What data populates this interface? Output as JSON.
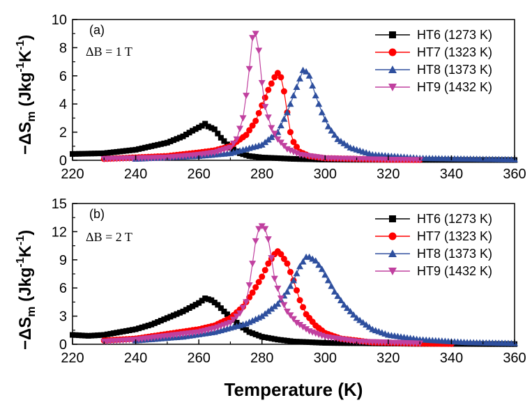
{
  "x_axis_label": "Temperature (K)",
  "chart_data": [
    {
      "type": "line",
      "panel": "(a)",
      "annotation": "ΔB = 1 T",
      "ylabel": {
        "main": "−ΔS",
        "sub": "m",
        "units": " (Jkg",
        "sup1": "-1",
        "mid": "K",
        "sup2": "-1",
        "end": ")"
      },
      "xlim": [
        220,
        360
      ],
      "ylim": [
        0,
        10
      ],
      "xticks": [
        "220",
        "240",
        "260",
        "280",
        "300",
        "320",
        "340",
        "360"
      ],
      "yticks": [
        "0",
        "2",
        "4",
        "6",
        "8",
        "10"
      ],
      "legend_position": "top-right",
      "series": [
        {
          "name": "HT6 (1273 K)",
          "color": "#000000",
          "marker": "square",
          "points": [
            [
              220,
              0.45
            ],
            [
              230,
              0.5
            ],
            [
              240,
              0.75
            ],
            [
              250,
              1.25
            ],
            [
              255,
              1.7
            ],
            [
              258,
              2.1
            ],
            [
              261,
              2.45
            ],
            [
              262,
              2.6
            ],
            [
              263,
              2.4
            ],
            [
              265,
              2.2
            ],
            [
              267,
              1.6
            ],
            [
              270,
              0.9
            ],
            [
              273,
              0.5
            ],
            [
              276,
              0.3
            ],
            [
              280,
              0.2
            ],
            [
              290,
              0.1
            ],
            [
              300,
              0.05
            ],
            [
              330,
              0.03
            ],
            [
              360,
              0.02
            ]
          ]
        },
        {
          "name": "HT7 (1323 K)",
          "color": "#ff0000",
          "marker": "circle",
          "points": [
            [
              230,
              0.1
            ],
            [
              250,
              0.3
            ],
            [
              260,
              0.55
            ],
            [
              265,
              0.7
            ],
            [
              270,
              1.0
            ],
            [
              275,
              1.8
            ],
            [
              278,
              2.8
            ],
            [
              280,
              3.9
            ],
            [
              282,
              5.0
            ],
            [
              284,
              5.9
            ],
            [
              285,
              6.2
            ],
            [
              286,
              5.9
            ],
            [
              287,
              4.9
            ],
            [
              288,
              3.4
            ],
            [
              289,
              2.0
            ],
            [
              290,
              1.3
            ],
            [
              292,
              0.6
            ],
            [
              295,
              0.3
            ],
            [
              300,
              0.15
            ],
            [
              320,
              0.05
            ],
            [
              330,
              0.03
            ]
          ]
        },
        {
          "name": "HT8 (1373 K)",
          "color": "#2e4f9e",
          "marker": "triangle-up",
          "points": [
            [
              240,
              0.1
            ],
            [
              260,
              0.3
            ],
            [
              270,
              0.5
            ],
            [
              280,
              1.1
            ],
            [
              285,
              2.0
            ],
            [
              288,
              3.4
            ],
            [
              290,
              4.6
            ],
            [
              292,
              5.8
            ],
            [
              293,
              6.4
            ],
            [
              294,
              6.3
            ],
            [
              295,
              6.0
            ],
            [
              297,
              4.6
            ],
            [
              299,
              3.4
            ],
            [
              301,
              2.4
            ],
            [
              304,
              1.5
            ],
            [
              308,
              0.9
            ],
            [
              315,
              0.4
            ],
            [
              330,
              0.15
            ],
            [
              360,
              0.05
            ]
          ]
        },
        {
          "name": "HT9 (1432 K)",
          "color": "#c0409f",
          "marker": "triangle-down",
          "points": [
            [
              230,
              0.1
            ],
            [
              250,
              0.2
            ],
            [
              260,
              0.4
            ],
            [
              265,
              0.55
            ],
            [
              270,
              0.9
            ],
            [
              272,
              1.5
            ],
            [
              274,
              3.0
            ],
            [
              275,
              4.6
            ],
            [
              276,
              6.5
            ],
            [
              277,
              8.7
            ],
            [
              278,
              9.0
            ],
            [
              279,
              7.8
            ],
            [
              280,
              5.5
            ],
            [
              281,
              3.8
            ],
            [
              283,
              2.3
            ],
            [
              285,
              1.5
            ],
            [
              288,
              0.8
            ],
            [
              292,
              0.4
            ],
            [
              300,
              0.15
            ],
            [
              320,
              0.05
            ],
            [
              330,
              0.03
            ]
          ]
        }
      ]
    },
    {
      "type": "line",
      "panel": "(b)",
      "annotation": "ΔB = 2 T",
      "ylabel": {
        "main": "−ΔS",
        "sub": "m",
        "units": " (Jkg",
        "sup1": "-1",
        "mid": "K",
        "sup2": "-1",
        "end": ")"
      },
      "xlim": [
        220,
        360
      ],
      "ylim": [
        0,
        15
      ],
      "xticks": [
        "220",
        "240",
        "260",
        "280",
        "300",
        "320",
        "340",
        "360"
      ],
      "yticks": [
        "0",
        "3",
        "6",
        "9",
        "12",
        "15"
      ],
      "legend_position": "top-right",
      "series": [
        {
          "name": "HT6 (1273 K)",
          "color": "#000000",
          "marker": "square",
          "points": [
            [
              220,
              1.0
            ],
            [
              225,
              0.9
            ],
            [
              230,
              1.0
            ],
            [
              235,
              1.3
            ],
            [
              240,
              1.6
            ],
            [
              245,
              2.1
            ],
            [
              250,
              2.8
            ],
            [
              255,
              3.5
            ],
            [
              260,
              4.4
            ],
            [
              262,
              4.9
            ],
            [
              264,
              4.7
            ],
            [
              266,
              4.2
            ],
            [
              268,
              3.5
            ],
            [
              270,
              2.9
            ],
            [
              273,
              2.0
            ],
            [
              276,
              1.3
            ],
            [
              280,
              0.8
            ],
            [
              285,
              0.5
            ],
            [
              290,
              0.3
            ],
            [
              300,
              0.15
            ],
            [
              330,
              0.05
            ],
            [
              360,
              0.02
            ]
          ]
        },
        {
          "name": "HT7 (1323 K)",
          "color": "#ff0000",
          "marker": "circle",
          "points": [
            [
              230,
              0.4
            ],
            [
              240,
              0.6
            ],
            [
              250,
              1.1
            ],
            [
              260,
              1.6
            ],
            [
              265,
              2.0
            ],
            [
              270,
              2.8
            ],
            [
              274,
              4.0
            ],
            [
              277,
              5.5
            ],
            [
              280,
              7.2
            ],
            [
              282,
              8.6
            ],
            [
              284,
              9.6
            ],
            [
              285,
              9.9
            ],
            [
              286,
              9.6
            ],
            [
              288,
              8.6
            ],
            [
              290,
              6.8
            ],
            [
              292,
              4.7
            ],
            [
              294,
              3.2
            ],
            [
              297,
              2.0
            ],
            [
              300,
              1.2
            ],
            [
              305,
              0.6
            ],
            [
              315,
              0.2
            ],
            [
              330,
              0.08
            ],
            [
              340,
              0.05
            ]
          ]
        },
        {
          "name": "HT8 (1373 K)",
          "color": "#2e4f9e",
          "marker": "triangle-up",
          "points": [
            [
              240,
              0.4
            ],
            [
              255,
              0.8
            ],
            [
              265,
              1.3
            ],
            [
              275,
              2.2
            ],
            [
              280,
              3.0
            ],
            [
              285,
              4.3
            ],
            [
              288,
              5.6
            ],
            [
              290,
              6.8
            ],
            [
              292,
              8.3
            ],
            [
              294,
              9.3
            ],
            [
              295,
              9.3
            ],
            [
              297,
              8.9
            ],
            [
              299,
              8.0
            ],
            [
              301,
              6.8
            ],
            [
              303,
              5.6
            ],
            [
              306,
              4.2
            ],
            [
              310,
              2.8
            ],
            [
              315,
              1.6
            ],
            [
              320,
              1.0
            ],
            [
              330,
              0.5
            ],
            [
              345,
              0.2
            ],
            [
              360,
              0.1
            ]
          ]
        },
        {
          "name": "HT9 (1432 K)",
          "color": "#c0409f",
          "marker": "triangle-down",
          "points": [
            [
              230,
              0.3
            ],
            [
              240,
              0.5
            ],
            [
              250,
              0.9
            ],
            [
              260,
              1.3
            ],
            [
              265,
              1.7
            ],
            [
              270,
              2.3
            ],
            [
              273,
              3.3
            ],
            [
              275,
              4.5
            ],
            [
              276,
              6.3
            ],
            [
              277,
              8.6
            ],
            [
              278,
              11.0
            ],
            [
              279,
              12.3
            ],
            [
              280,
              12.6
            ],
            [
              281,
              12.3
            ],
            [
              282,
              11.2
            ],
            [
              283,
              9.2
            ],
            [
              284,
              7.0
            ],
            [
              286,
              4.9
            ],
            [
              288,
              3.5
            ],
            [
              291,
              2.3
            ],
            [
              295,
              1.4
            ],
            [
              300,
              0.8
            ],
            [
              310,
              0.3
            ],
            [
              330,
              0.1
            ]
          ]
        }
      ]
    }
  ]
}
